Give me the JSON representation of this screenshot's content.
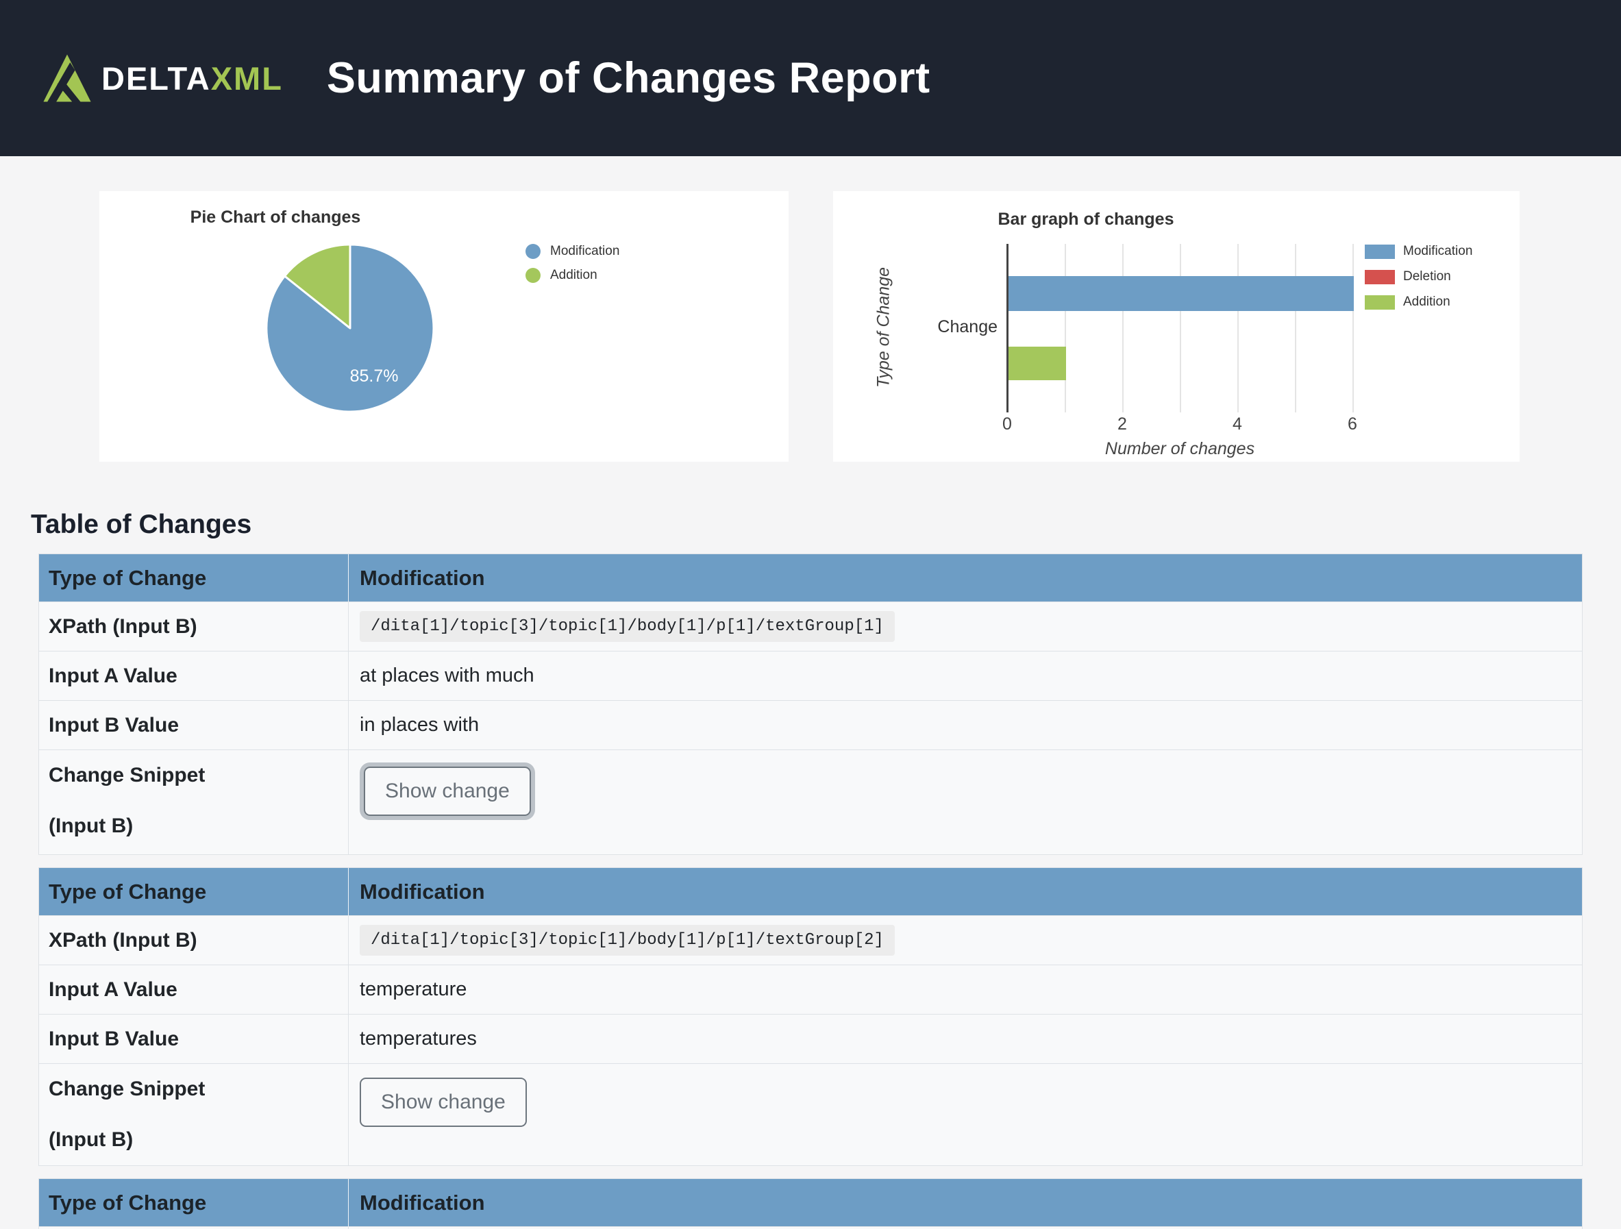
{
  "colors": {
    "header_bg": "#1e2430",
    "brand_green": "#a3c553",
    "chart_blue": "#6d9dc5",
    "chart_green": "#a4c75c",
    "chart_red": "#d5514e",
    "table_header_bg": "#6d9dc5"
  },
  "header": {
    "brand_delta": "DELTA",
    "brand_xml": "XML",
    "title": "Summary of Changes Report"
  },
  "chart_data": [
    {
      "type": "pie",
      "title": "Pie Chart of changes",
      "labels": [
        "Modification",
        "Addition"
      ],
      "values_percent": [
        85.7,
        14.3
      ],
      "slice_label": "85.7%",
      "colors": [
        "#6d9dc5",
        "#a4c75c"
      ],
      "legend_position": "right"
    },
    {
      "type": "bar",
      "orientation": "horizontal",
      "title": "Bar graph of changes",
      "categories": [
        "Change"
      ],
      "series": [
        {
          "name": "Modification",
          "values": [
            6
          ],
          "color": "#6d9dc5"
        },
        {
          "name": "Deletion",
          "values": [
            0
          ],
          "color": "#d5514e"
        },
        {
          "name": "Addition",
          "values": [
            1
          ],
          "color": "#a4c75c"
        }
      ],
      "xlabel": "Number of changes",
      "ylabel": "Type of Change",
      "xlim": [
        0,
        6
      ],
      "xticks": [
        0,
        2,
        4,
        6
      ],
      "grid": true,
      "legend_position": "right"
    }
  ],
  "tables_section": {
    "heading": "Table of Changes",
    "tables": [
      {
        "header": {
          "label": "Type of Change",
          "value": "Modification"
        },
        "xpath_label": "XPath (Input B)",
        "xpath_value": "/dita[1]/topic[3]/topic[1]/body[1]/p[1]/textGroup[1]",
        "input_a_label": "Input A Value",
        "input_a_value": "at places with much",
        "input_b_label": "Input B Value",
        "input_b_value": "in places with",
        "snippet_label_line1": "Change Snippet",
        "snippet_label_line2": "(Input B)",
        "snippet_button": "Show change"
      },
      {
        "header": {
          "label": "Type of Change",
          "value": "Modification"
        },
        "xpath_label": "XPath (Input B)",
        "xpath_value": "/dita[1]/topic[3]/topic[1]/body[1]/p[1]/textGroup[2]",
        "input_a_label": "Input A Value",
        "input_a_value": "temperature",
        "input_b_label": "Input B Value",
        "input_b_value": "temperatures",
        "snippet_label_line1": "Change Snippet",
        "snippet_label_line2": "(Input B)",
        "snippet_button": "Show change"
      },
      {
        "header": {
          "label": "Type of Change",
          "value": "Modification"
        }
      }
    ]
  }
}
